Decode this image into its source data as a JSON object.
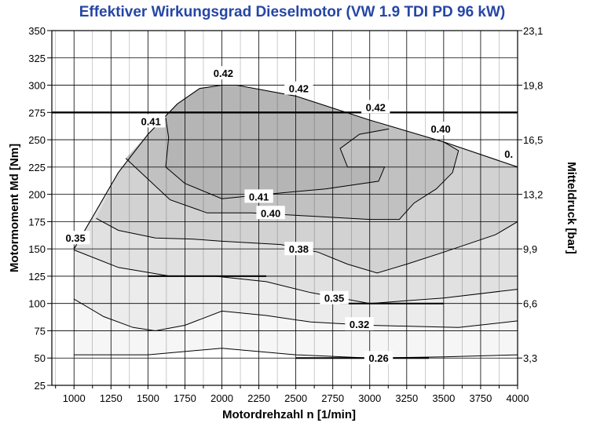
{
  "chart_data": {
    "type": "contour",
    "title": "Effektiver Wirkungsgrad Dieselmotor (VW 1.9 TDI PD 96 kW)",
    "xlabel": "Motordrehzahl n [1/min]",
    "ylabel": "Motormoment Md [Nm]",
    "y2label": "Mitteldruck [bar]",
    "xlim": [
      850,
      4000
    ],
    "ylim": [
      25,
      350
    ],
    "x_ticks": [
      "1000",
      "1250",
      "1500",
      "1750",
      "2000",
      "2250",
      "2500",
      "2750",
      "3000",
      "3250",
      "3500",
      "3750",
      "4000"
    ],
    "y_ticks": [
      "25",
      "50",
      "75",
      "100",
      "125",
      "150",
      "175",
      "200",
      "225",
      "250",
      "275",
      "300",
      "325",
      "350"
    ],
    "y2_ticks": [
      {
        "label": "3,3",
        "at": 50
      },
      {
        "label": "6,6",
        "at": 100
      },
      {
        "label": "9,9",
        "at": 150
      },
      {
        "label": "13,2",
        "at": 200
      },
      {
        "label": "16,5",
        "at": 250
      },
      {
        "label": "19,8",
        "at": 300
      },
      {
        "label": "23,1",
        "at": 350
      }
    ],
    "grid": true,
    "reference_line_y": 275,
    "full_load_curve": [
      [
        1000,
        150
      ],
      [
        1150,
        185
      ],
      [
        1300,
        220
      ],
      [
        1500,
        255
      ],
      [
        1700,
        283
      ],
      [
        1850,
        297
      ],
      [
        2000,
        300
      ],
      [
        2100,
        300
      ],
      [
        2500,
        290
      ],
      [
        3000,
        268
      ],
      [
        3500,
        248
      ],
      [
        4000,
        225
      ]
    ],
    "regions": [
      {
        "level": "<0.26",
        "color": "#ffffff",
        "boundary": [
          [
            1000,
            150
          ],
          [
            1150,
            185
          ],
          [
            1300,
            220
          ],
          [
            1500,
            255
          ],
          [
            1700,
            283
          ],
          [
            1850,
            297
          ],
          [
            2000,
            300
          ],
          [
            2100,
            300
          ],
          [
            2500,
            290
          ],
          [
            3000,
            268
          ],
          [
            3500,
            248
          ],
          [
            4000,
            225
          ],
          [
            4000,
            25
          ],
          [
            1000,
            25
          ]
        ]
      },
      {
        "level": "0.26-0.32",
        "color": "#f6f6f6",
        "boundary": [
          [
            1000,
            150
          ],
          [
            1150,
            185
          ],
          [
            1300,
            220
          ],
          [
            1500,
            255
          ],
          [
            1700,
            283
          ],
          [
            1850,
            297
          ],
          [
            2000,
            300
          ],
          [
            2100,
            300
          ],
          [
            2500,
            290
          ],
          [
            3000,
            268
          ],
          [
            3500,
            248
          ],
          [
            4000,
            225
          ],
          [
            4000,
            53
          ],
          [
            3500,
            51
          ],
          [
            3000,
            50
          ],
          [
            2500,
            53
          ],
          [
            2000,
            59
          ],
          [
            1500,
            53
          ],
          [
            1000,
            53
          ]
        ]
      },
      {
        "level": "0.32-0.35",
        "color": "#ececec",
        "boundary": [
          [
            1000,
            150
          ],
          [
            1150,
            185
          ],
          [
            1300,
            220
          ],
          [
            1500,
            255
          ],
          [
            1700,
            283
          ],
          [
            1850,
            297
          ],
          [
            2000,
            300
          ],
          [
            2100,
            300
          ],
          [
            2500,
            290
          ],
          [
            3000,
            268
          ],
          [
            3500,
            248
          ],
          [
            4000,
            225
          ],
          [
            4000,
            84
          ],
          [
            3600,
            78
          ],
          [
            3000,
            80
          ],
          [
            2600,
            83
          ],
          [
            2300,
            89
          ],
          [
            2000,
            93
          ],
          [
            1750,
            80
          ],
          [
            1550,
            75
          ],
          [
            1400,
            78
          ],
          [
            1200,
            88
          ],
          [
            1000,
            104
          ]
        ]
      },
      {
        "level": "0.35-0.38",
        "color": "#e1e1e1",
        "boundary": [
          [
            1000,
            150
          ],
          [
            1150,
            185
          ],
          [
            1300,
            220
          ],
          [
            1500,
            255
          ],
          [
            1700,
            283
          ],
          [
            1850,
            297
          ],
          [
            2000,
            300
          ],
          [
            2100,
            300
          ],
          [
            2500,
            290
          ],
          [
            3000,
            268
          ],
          [
            3500,
            248
          ],
          [
            4000,
            225
          ],
          [
            4000,
            113
          ],
          [
            3500,
            105
          ],
          [
            3000,
            100
          ],
          [
            2600,
            110
          ],
          [
            2300,
            120
          ],
          [
            1950,
            125
          ],
          [
            1650,
            125
          ],
          [
            1300,
            133
          ],
          [
            1000,
            149
          ]
        ]
      },
      {
        "level": "0.38-0.40",
        "color": "#d2d2d2",
        "boundary": [
          [
            1150,
            178
          ],
          [
            1300,
            220
          ],
          [
            1500,
            255
          ],
          [
            1700,
            283
          ],
          [
            1850,
            297
          ],
          [
            2000,
            300
          ],
          [
            2100,
            300
          ],
          [
            2500,
            290
          ],
          [
            3000,
            268
          ],
          [
            3500,
            248
          ],
          [
            4000,
            225
          ],
          [
            4000,
            175
          ],
          [
            3850,
            163
          ],
          [
            3500,
            147
          ],
          [
            3250,
            136
          ],
          [
            3050,
            128
          ],
          [
            2850,
            136
          ],
          [
            2650,
            147
          ],
          [
            2400,
            154
          ],
          [
            2000,
            157
          ],
          [
            1800,
            159
          ],
          [
            1550,
            160
          ],
          [
            1300,
            167
          ]
        ]
      },
      {
        "level": "0.40-0.41",
        "color": "#c1c1c1",
        "boundary": [
          [
            1350,
            233
          ],
          [
            1500,
            255
          ],
          [
            1700,
            283
          ],
          [
            1850,
            297
          ],
          [
            2000,
            300
          ],
          [
            2100,
            300
          ],
          [
            2500,
            290
          ],
          [
            3000,
            268
          ],
          [
            3500,
            248
          ],
          [
            3600,
            240
          ],
          [
            3560,
            220
          ],
          [
            3450,
            205
          ],
          [
            3300,
            192
          ],
          [
            3200,
            177
          ],
          [
            3000,
            177
          ],
          [
            2600,
            180
          ],
          [
            2200,
            183
          ],
          [
            1900,
            183
          ],
          [
            1650,
            195
          ]
        ]
      },
      {
        "level": "0.41-0.42",
        "color": "#b5b5b5",
        "boundary": [
          [
            1620,
            270
          ],
          [
            1700,
            283
          ],
          [
            1850,
            297
          ],
          [
            2000,
            300
          ],
          [
            2100,
            300
          ],
          [
            2500,
            290
          ],
          [
            3000,
            268
          ],
          [
            3130,
            260
          ],
          [
            2930,
            255
          ],
          [
            2800,
            242
          ],
          [
            2850,
            225
          ],
          [
            3100,
            225
          ],
          [
            3060,
            212
          ],
          [
            2700,
            205
          ],
          [
            2300,
            200
          ],
          [
            2000,
            196
          ],
          [
            1750,
            210
          ],
          [
            1620,
            225
          ],
          [
            1640,
            252
          ]
        ]
      }
    ],
    "isolines": [
      {
        "label": "0.26",
        "points": [
          [
            1000,
            53
          ],
          [
            1500,
            53
          ],
          [
            2000,
            59
          ],
          [
            2500,
            53
          ],
          [
            3000,
            50
          ],
          [
            3500,
            51
          ],
          [
            4000,
            53
          ]
        ],
        "labels": [
          {
            "x": 3060,
            "y": 50
          }
        ]
      },
      {
        "label": "0.32",
        "points": [
          [
            1000,
            104
          ],
          [
            1200,
            88
          ],
          [
            1400,
            78
          ],
          [
            1550,
            75
          ],
          [
            1750,
            80
          ],
          [
            2000,
            93
          ],
          [
            2300,
            89
          ],
          [
            2600,
            83
          ],
          [
            3000,
            80
          ],
          [
            3600,
            78
          ],
          [
            4000,
            84
          ]
        ],
        "labels": [
          {
            "x": 2930,
            "y": 81
          }
        ]
      },
      {
        "label": "0.35",
        "points": [
          [
            1000,
            149
          ],
          [
            1300,
            133
          ],
          [
            1650,
            125
          ],
          [
            1950,
            125
          ],
          [
            2300,
            120
          ],
          [
            2600,
            110
          ],
          [
            3000,
            100
          ],
          [
            3500,
            105
          ],
          [
            4000,
            113
          ]
        ],
        "labels": [
          {
            "x": 2760,
            "y": 105
          }
        ]
      },
      {
        "label": "0.35",
        "points": [
          [
            1000,
            150
          ],
          [
            1030,
            157
          ]
        ],
        "labels": [
          {
            "x": 1010,
            "y": 160
          }
        ]
      },
      {
        "label": "0.38",
        "points": [
          [
            1150,
            178
          ],
          [
            1300,
            167
          ],
          [
            1550,
            160
          ],
          [
            1800,
            159
          ],
          [
            2000,
            157
          ],
          [
            2400,
            154
          ],
          [
            2650,
            147
          ],
          [
            2850,
            136
          ],
          [
            3050,
            128
          ],
          [
            3250,
            136
          ],
          [
            3500,
            147
          ],
          [
            3850,
            163
          ],
          [
            4000,
            175
          ]
        ],
        "labels": [
          {
            "x": 2520,
            "y": 150
          }
        ]
      },
      {
        "label": "0.40",
        "points": [
          [
            1350,
            233
          ],
          [
            1650,
            195
          ],
          [
            1900,
            183
          ],
          [
            2200,
            183
          ],
          [
            2600,
            180
          ],
          [
            3000,
            177
          ],
          [
            3200,
            177
          ],
          [
            3300,
            192
          ],
          [
            3450,
            205
          ],
          [
            3560,
            220
          ],
          [
            3600,
            240
          ],
          [
            3500,
            248
          ]
        ],
        "labels": [
          {
            "x": 2330,
            "y": 183
          },
          {
            "x": 3480,
            "y": 260
          }
        ]
      },
      {
        "label": "0.41",
        "points": [
          [
            1620,
            270
          ],
          [
            1640,
            252
          ],
          [
            1620,
            225
          ],
          [
            1750,
            210
          ],
          [
            2000,
            196
          ],
          [
            2300,
            200
          ],
          [
            2700,
            205
          ],
          [
            3060,
            212
          ],
          [
            3100,
            225
          ],
          [
            2850,
            225
          ],
          [
            2800,
            242
          ],
          [
            2930,
            255
          ],
          [
            3130,
            260
          ]
        ],
        "labels": [
          {
            "x": 2250,
            "y": 198
          },
          {
            "x": 1520,
            "y": 267
          }
        ]
      },
      {
        "label": "0.42",
        "points": [],
        "labels": [
          {
            "x": 2010,
            "y": 311
          },
          {
            "x": 2520,
            "y": 297
          },
          {
            "x": 3040,
            "y": 280
          }
        ]
      },
      {
        "label": "0.",
        "points": [],
        "labels": [
          {
            "x": 3940,
            "y": 237
          }
        ]
      }
    ]
  }
}
